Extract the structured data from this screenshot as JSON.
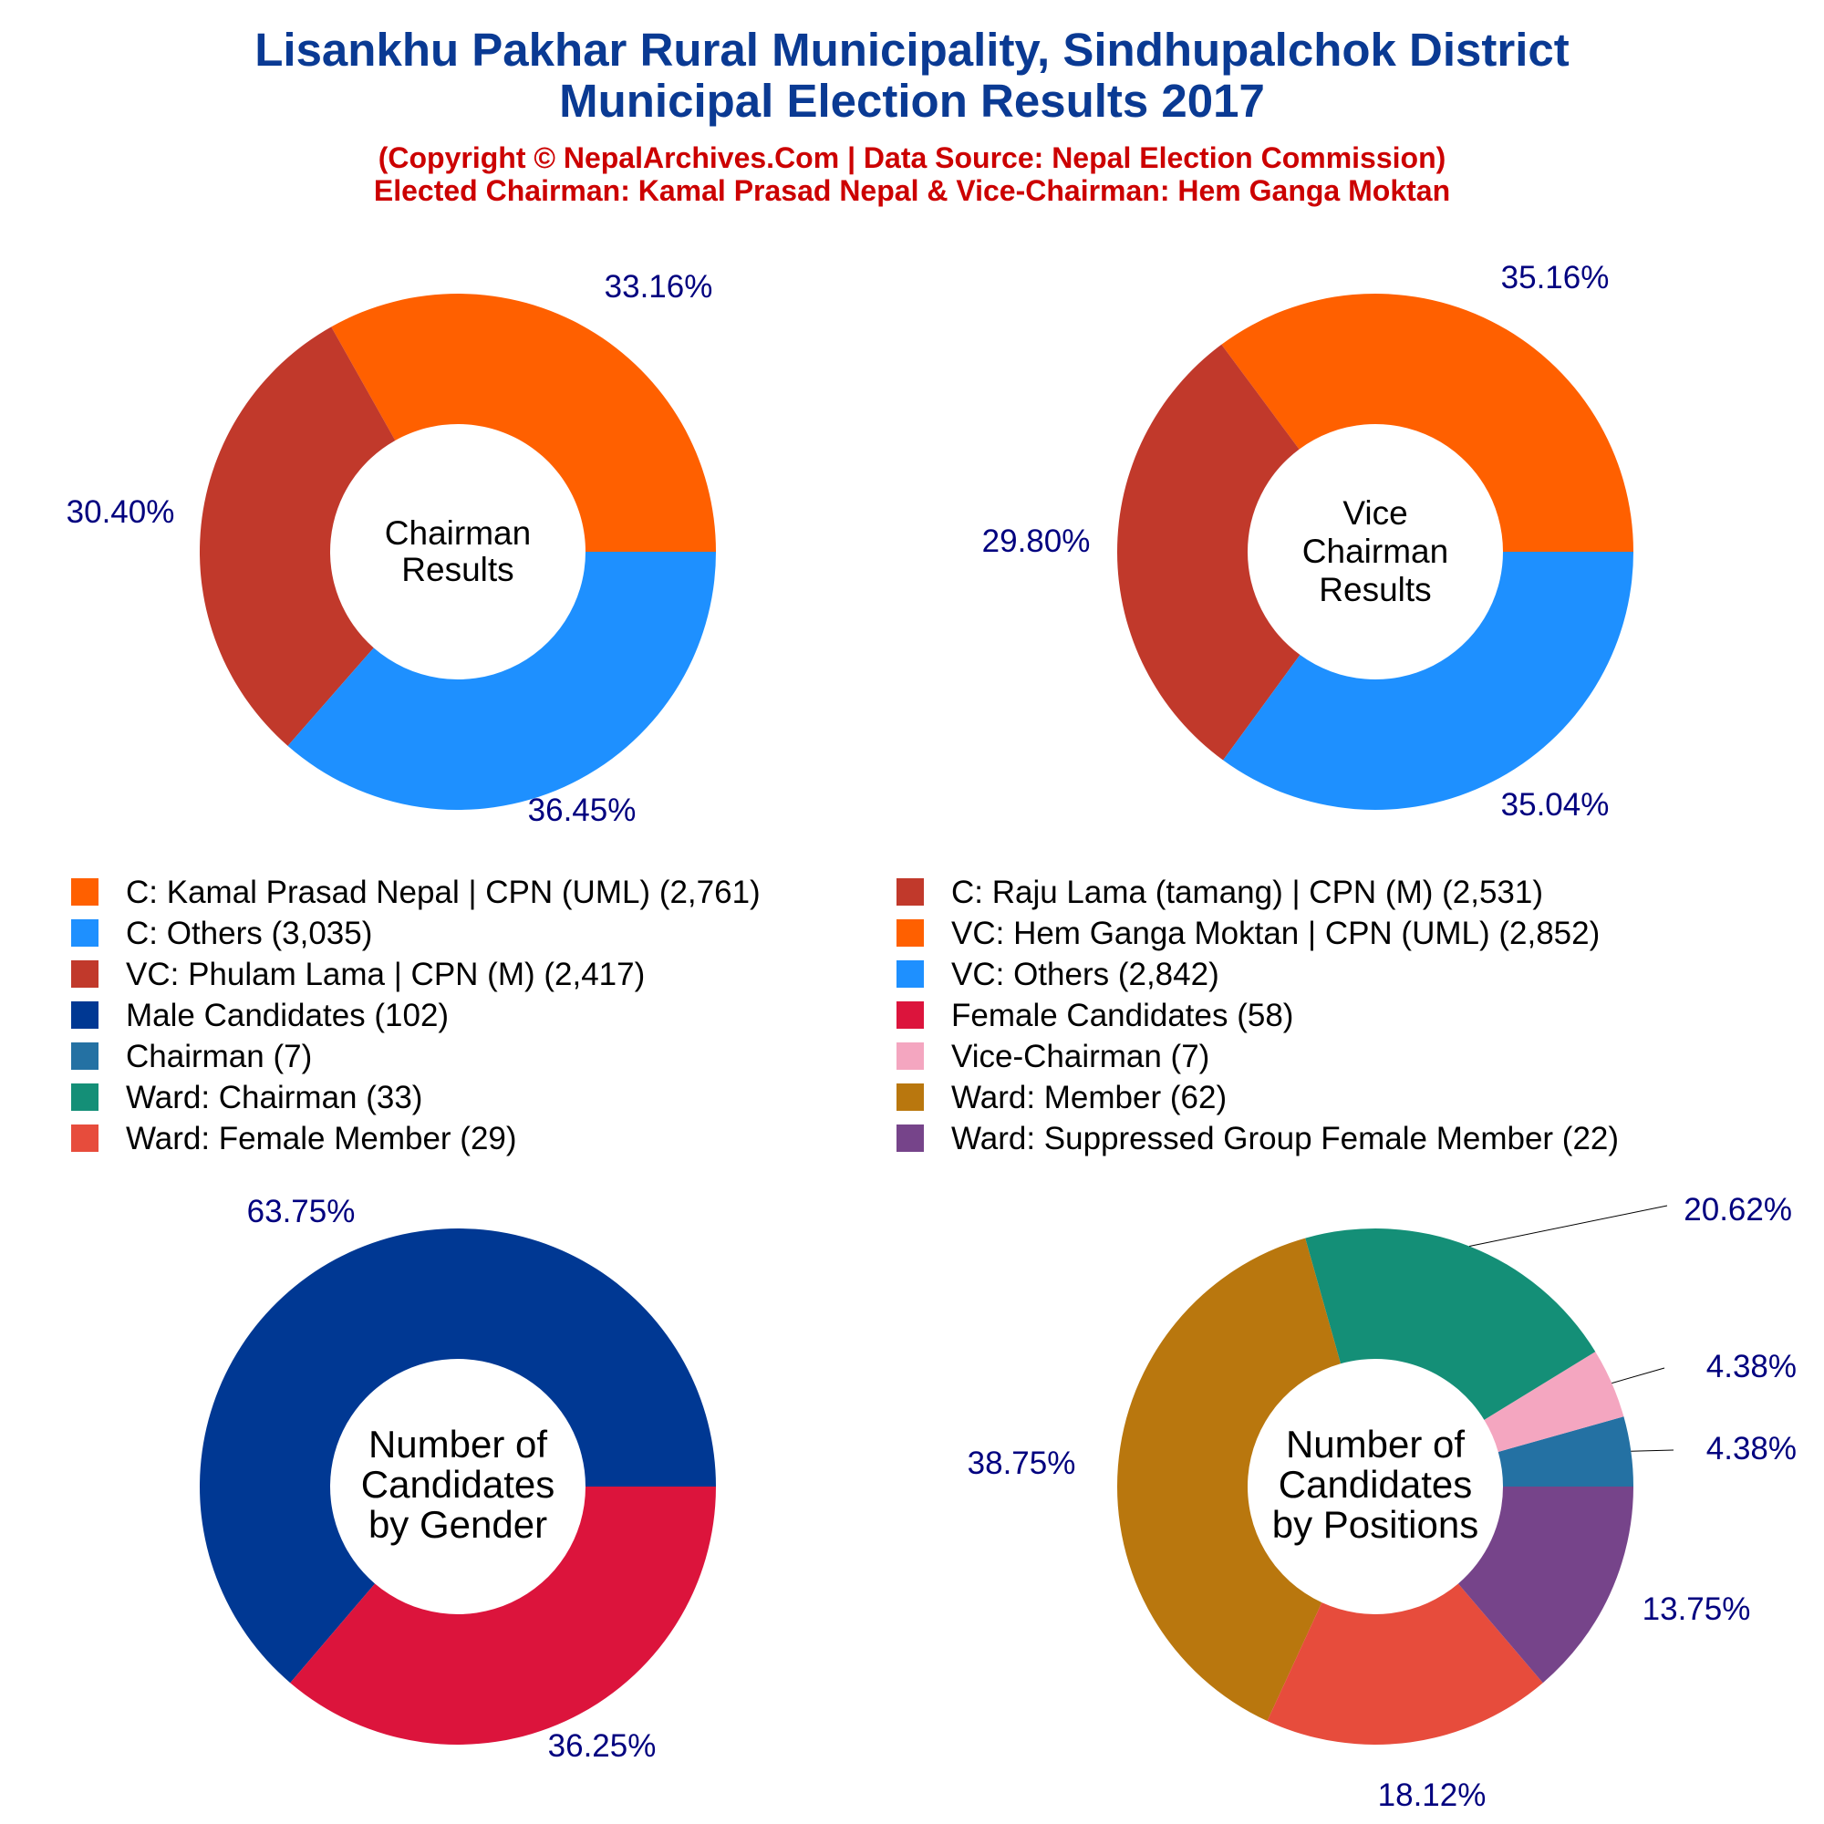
{
  "title_line1": "Lisankhu Pakhar Rural Municipality, Sindhupalchok District",
  "title_line2": "Municipal Election Results 2017",
  "subtitle_line1": "(Copyright © NepalArchives.Com | Data Source: Nepal Election Commission)",
  "subtitle_line2": "Elected Chairman: Kamal Prasad Nepal & Vice-Chairman: Hem Ganga Moktan",
  "legend": [
    {
      "label": "C: Kamal Prasad Nepal | CPN (UML) (2,761)",
      "color": "#ff6000"
    },
    {
      "label": "C: Raju Lama (tamang) | CPN (M) (2,531)",
      "color": "#c1392b"
    },
    {
      "label": "C: Others (3,035)",
      "color": "#1e90ff"
    },
    {
      "label": "VC: Hem Ganga Moktan | CPN (UML) (2,852)",
      "color": "#ff6000"
    },
    {
      "label": "VC: Phulam Lama | CPN (M) (2,417)",
      "color": "#c1392b"
    },
    {
      "label": "VC: Others (2,842)",
      "color": "#1e90ff"
    },
    {
      "label": "Male Candidates (102)",
      "color": "#003893"
    },
    {
      "label": "Female Candidates (58)",
      "color": "#dc143c"
    },
    {
      "label": "Chairman (7)",
      "color": "#2471a3"
    },
    {
      "label": "Vice-Chairman (7)",
      "color": "#f4a6c0"
    },
    {
      "label": "Ward: Chairman (33)",
      "color": "#148f77"
    },
    {
      "label": "Ward: Member (62)",
      "color": "#b9770e"
    },
    {
      "label": "Ward: Female Member (29)",
      "color": "#e74c3c"
    },
    {
      "label": "Ward: Suppressed Group Female Member (22)",
      "color": "#76448a"
    }
  ],
  "chart_data": [
    {
      "type": "pie",
      "donut": true,
      "center_label": [
        "Chairman",
        "Results"
      ],
      "slices": [
        {
          "name": "C: Kamal Prasad Nepal | CPN (UML)",
          "value": 2761,
          "label": "33.16%",
          "color": "#ff6000"
        },
        {
          "name": "C: Raju Lama (tamang) | CPN (M)",
          "value": 2531,
          "label": "30.40%",
          "color": "#c1392b"
        },
        {
          "name": "C: Others",
          "value": 3035,
          "label": "36.45%",
          "color": "#1e90ff"
        }
      ]
    },
    {
      "type": "pie",
      "donut": true,
      "center_label": [
        "Vice",
        "Chairman",
        "Results"
      ],
      "slices": [
        {
          "name": "VC: Hem Ganga Moktan | CPN (UML)",
          "value": 2852,
          "label": "35.16%",
          "color": "#ff6000"
        },
        {
          "name": "VC: Phulam Lama | CPN (M)",
          "value": 2417,
          "label": "29.80%",
          "color": "#c1392b"
        },
        {
          "name": "VC: Others",
          "value": 2842,
          "label": "35.04%",
          "color": "#1e90ff"
        }
      ]
    },
    {
      "type": "pie",
      "donut": true,
      "center_label": [
        "Number of",
        "Candidates",
        "by Gender"
      ],
      "slices": [
        {
          "name": "Male Candidates",
          "value": 102,
          "label": "63.75%",
          "color": "#003893"
        },
        {
          "name": "Female Candidates",
          "value": 58,
          "label": "36.25%",
          "color": "#dc143c"
        }
      ]
    },
    {
      "type": "pie",
      "donut": true,
      "center_label": [
        "Number of",
        "Candidates",
        "by Positions"
      ],
      "slices": [
        {
          "name": "Chairman",
          "value": 7,
          "label": "4.38%",
          "color": "#2471a3"
        },
        {
          "name": "Vice-Chairman",
          "value": 7,
          "label": "4.38%",
          "color": "#f4a6c0"
        },
        {
          "name": "Ward: Chairman",
          "value": 33,
          "label": "20.62%",
          "color": "#148f77"
        },
        {
          "name": "Ward: Member",
          "value": 62,
          "label": "38.75%",
          "color": "#b9770e"
        },
        {
          "name": "Ward: Female Member",
          "value": 29,
          "label": "18.12%",
          "color": "#e74c3c"
        },
        {
          "name": "Ward: Suppressed Group Female Member",
          "value": 22,
          "label": "13.75%",
          "color": "#76448a"
        }
      ]
    }
  ]
}
